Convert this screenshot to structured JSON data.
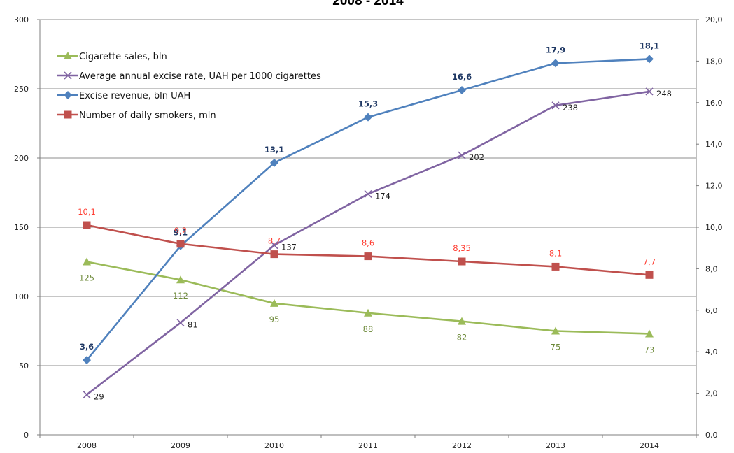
{
  "chart_data": {
    "type": "line",
    "title": "2008 - 2014",
    "categories": [
      "2008",
      "2009",
      "2010",
      "2011",
      "2012",
      "2013",
      "2014"
    ],
    "left_axis": {
      "min": 0,
      "max": 300,
      "step": 50,
      "tick_labels": [
        "0",
        "50",
        "100",
        "150",
        "200",
        "250",
        "300"
      ]
    },
    "right_axis": {
      "min": 0,
      "max": 20,
      "step": 2,
      "tick_labels": [
        "0,0",
        "2,0",
        "4,0",
        "6,0",
        "8,0",
        "10,0",
        "12,0",
        "14,0",
        "16,0",
        "18,0",
        "20,0"
      ]
    },
    "grid": true,
    "legend_position": "top-left",
    "series": [
      {
        "name": "Cigarette sales, bln",
        "axis": "left",
        "color": "#9bbb59",
        "marker": "triangle",
        "values": [
          125,
          112,
          95,
          88,
          82,
          75,
          73
        ],
        "labels": [
          "125",
          "112",
          "95",
          "88",
          "82",
          "75",
          "73"
        ],
        "label_color": "#6e8a3a"
      },
      {
        "name": "Average annual excise rate, UAH per 1000 cigarettes",
        "axis": "left",
        "color": "#8064a2",
        "marker": "x",
        "values": [
          29,
          81,
          137,
          174,
          202,
          238,
          248
        ],
        "labels": [
          "29",
          "81",
          "137",
          "174",
          "202",
          "238",
          "248"
        ],
        "label_color": "#222222"
      },
      {
        "name": "Excise revenue, bln UAH",
        "axis": "right",
        "color": "#4f81bd",
        "marker": "diamond",
        "values": [
          3.6,
          9.1,
          13.1,
          15.3,
          16.6,
          17.9,
          18.1
        ],
        "labels": [
          "3,6",
          "9,1",
          "13,1",
          "15,3",
          "16,6",
          "17,9",
          "18,1"
        ],
        "label_color": "#1f3864"
      },
      {
        "name": "Number of daily smokers, mln",
        "axis": "right",
        "color": "#c0504d",
        "marker": "square",
        "values": [
          10.1,
          9.2,
          8.7,
          8.6,
          8.35,
          8.1,
          7.7
        ],
        "labels": [
          "10,1",
          "9,2",
          "8,7",
          "8,6",
          "8,35",
          "8,1",
          "7,7"
        ],
        "label_color": "#ff3b30"
      }
    ]
  }
}
